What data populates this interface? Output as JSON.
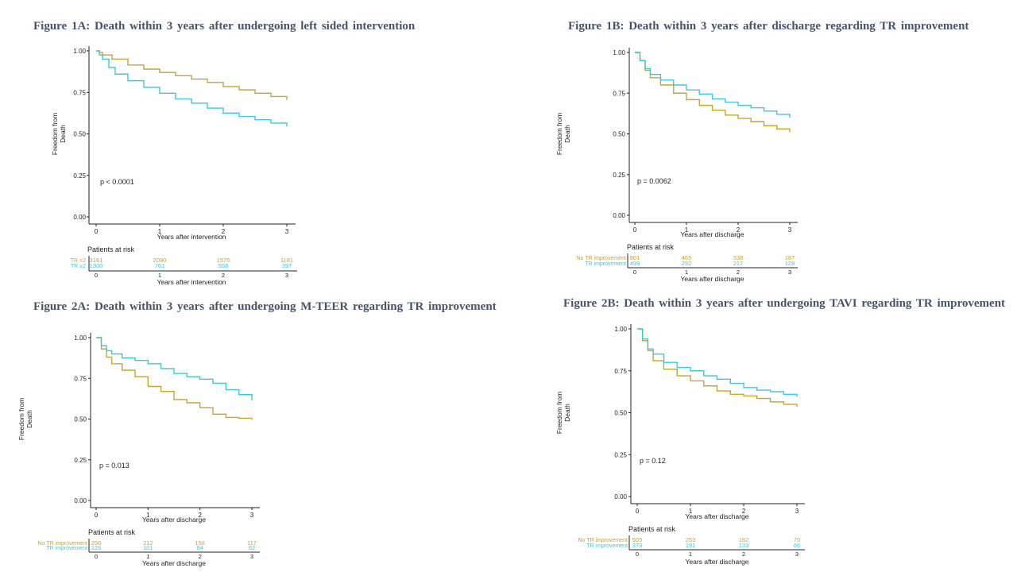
{
  "colors": {
    "gold": "#c5a42f",
    "teal": "#3cc8d6",
    "axis": "#222222",
    "title": "#44546a"
  },
  "figures": [
    {
      "title": "Figure 1A: Death within 3 years after undergoing left sided intervention",
      "pvalue": "p < 0.0001",
      "ylabel_line1": "Freedom from",
      "ylabel_line2": "Death",
      "xlabel": "Years after intervention",
      "risk_xlabel": "Years after intervention",
      "risk_title": "Patients at risk",
      "yticks": [
        "0.00",
        "0.25",
        "0.50",
        "0.75",
        "1.00"
      ],
      "xticks": [
        "0",
        "1",
        "2",
        "3"
      ],
      "risk_xticks": [
        "0",
        "1",
        "2",
        "3"
      ]
    },
    {
      "title": "Figure 1B: Death within 3 years after discharge regarding TR improvement",
      "pvalue": "p = 0.0062",
      "ylabel_line1": "Freedom from",
      "ylabel_line2": "Death",
      "xlabel": "Years after discharge",
      "risk_xlabel": "Years after discharge",
      "risk_title": "Patients at risk",
      "yticks": [
        "0.00",
        "0.25",
        "0.50",
        "0.75",
        "1.00"
      ],
      "xticks": [
        "0",
        "1",
        "2",
        "3"
      ],
      "risk_xticks": [
        "0",
        "1",
        "2",
        "3"
      ]
    },
    {
      "title": "Figure 2A: Death within 3 years after undergoing M-TEER regarding TR improvement",
      "pvalue": "p = 0.013",
      "ylabel_line1": "Freedom from",
      "ylabel_line2": "Death",
      "xlabel": "Years after discharge",
      "risk_xlabel": "Years after discharge",
      "risk_title": "Patients at risk",
      "yticks": [
        "0.00",
        "0.25",
        "0.50",
        "0.75",
        "1.00"
      ],
      "xticks": [
        "0",
        "1",
        "2",
        "3"
      ],
      "risk_xticks": [
        "0",
        "1",
        "2",
        "3"
      ]
    },
    {
      "title": "Figure 2B: Death within 3 years after undergoing TAVI regarding TR improvement",
      "pvalue": "p = 0.12",
      "ylabel_line1": "Freedom from",
      "ylabel_line2": "Death",
      "xlabel": "Years after discharge",
      "risk_xlabel": "Years after discharge",
      "risk_title": "Patients at risk",
      "yticks": [
        "0.00",
        "0.25",
        "0.50",
        "0.75",
        "1.00"
      ],
      "xticks": [
        "0",
        "1",
        "2",
        "3"
      ],
      "risk_xticks": [
        "0",
        "1",
        "2",
        "3"
      ]
    }
  ],
  "chart_data": [
    {
      "type": "line",
      "title": "Figure 1A: Death within 3 years after undergoing left sided intervention",
      "xlabel": "Years after intervention",
      "ylabel": "Freedom from Death",
      "xlim": [
        0,
        3
      ],
      "ylim": [
        0,
        1
      ],
      "annotation": "p < 0.0001",
      "series": [
        {
          "name": "TR <2",
          "color": "#c5a42f",
          "x": [
            0,
            0.05,
            0.1,
            0.25,
            0.5,
            0.75,
            1,
            1.25,
            1.5,
            1.75,
            2,
            2.25,
            2.5,
            2.75,
            3
          ],
          "y": [
            1.0,
            0.99,
            0.975,
            0.95,
            0.915,
            0.89,
            0.87,
            0.85,
            0.83,
            0.81,
            0.785,
            0.765,
            0.745,
            0.725,
            0.705
          ],
          "at_risk": [
            "3161",
            "2090",
            "1576",
            "1181"
          ]
        },
        {
          "name": "TR ≥2",
          "color": "#3cc8d6",
          "x": [
            0,
            0.05,
            0.1,
            0.2,
            0.3,
            0.5,
            0.75,
            1,
            1.25,
            1.5,
            1.75,
            2,
            2.25,
            2.5,
            2.75,
            3
          ],
          "y": [
            1.0,
            0.975,
            0.95,
            0.9,
            0.86,
            0.82,
            0.78,
            0.745,
            0.71,
            0.685,
            0.655,
            0.625,
            0.605,
            0.585,
            0.565,
            0.545
          ],
          "at_risk": [
            "1300",
            "761",
            "558",
            "397"
          ]
        }
      ]
    },
    {
      "type": "line",
      "title": "Figure 1B: Death within 3 years after discharge regarding TR improvement",
      "xlabel": "Years after discharge",
      "ylabel": "Freedom from Death",
      "xlim": [
        0,
        3
      ],
      "ylim": [
        0,
        1
      ],
      "annotation": "p = 0.0062",
      "series": [
        {
          "name": "No TR improvement",
          "color": "#c5a42f",
          "x": [
            0,
            0.1,
            0.2,
            0.3,
            0.5,
            0.75,
            1,
            1.25,
            1.5,
            1.75,
            2,
            2.25,
            2.5,
            2.75,
            3
          ],
          "y": [
            1.0,
            0.95,
            0.89,
            0.845,
            0.8,
            0.75,
            0.71,
            0.675,
            0.645,
            0.615,
            0.595,
            0.575,
            0.55,
            0.53,
            0.51
          ],
          "at_risk": [
            "801",
            "465",
            "338",
            "187"
          ]
        },
        {
          "name": "TR improvement",
          "color": "#3cc8d6",
          "x": [
            0,
            0.1,
            0.2,
            0.3,
            0.5,
            0.75,
            1,
            1.25,
            1.5,
            1.75,
            2,
            2.25,
            2.5,
            2.75,
            3
          ],
          "y": [
            1.0,
            0.95,
            0.9,
            0.865,
            0.83,
            0.8,
            0.77,
            0.745,
            0.715,
            0.695,
            0.675,
            0.66,
            0.64,
            0.62,
            0.6
          ],
          "at_risk": [
            "499",
            "292",
            "217",
            "128"
          ]
        }
      ]
    },
    {
      "type": "line",
      "title": "Figure 2A: Death within 3 years after undergoing M-TEER regarding TR improvement",
      "xlabel": "Years after discharge",
      "ylabel": "Freedom from Death",
      "xlim": [
        0,
        3
      ],
      "ylim": [
        0,
        1
      ],
      "annotation": "p = 0.013",
      "series": [
        {
          "name": "No TR improvement",
          "color": "#c5a42f",
          "x": [
            0,
            0.1,
            0.2,
            0.3,
            0.5,
            0.75,
            1,
            1.25,
            1.5,
            1.75,
            2,
            2.25,
            2.5,
            2.75,
            3
          ],
          "y": [
            1.0,
            0.93,
            0.88,
            0.84,
            0.8,
            0.76,
            0.7,
            0.67,
            0.62,
            0.6,
            0.57,
            0.53,
            0.51,
            0.505,
            0.495
          ],
          "at_risk": [
            "296",
            "212",
            "156",
            "117"
          ]
        },
        {
          "name": "TR improvement",
          "color": "#3cc8d6",
          "x": [
            0,
            0.1,
            0.2,
            0.3,
            0.5,
            0.75,
            1,
            1.25,
            1.5,
            1.75,
            2,
            2.25,
            2.5,
            2.75,
            3
          ],
          "y": [
            1.0,
            0.95,
            0.92,
            0.9,
            0.875,
            0.86,
            0.84,
            0.81,
            0.78,
            0.76,
            0.745,
            0.72,
            0.68,
            0.65,
            0.615
          ],
          "at_risk": [
            "126",
            "101",
            "84",
            "62"
          ]
        }
      ]
    },
    {
      "type": "line",
      "title": "Figure 2B: Death within 3 years after undergoing TAVI regarding TR improvement",
      "xlabel": "Years after discharge",
      "ylabel": "Freedom from Death",
      "xlim": [
        0,
        3
      ],
      "ylim": [
        0,
        1
      ],
      "annotation": "p = 0.12",
      "series": [
        {
          "name": "No TR improvement",
          "color": "#c5a42f",
          "x": [
            0,
            0.1,
            0.2,
            0.3,
            0.5,
            0.75,
            1,
            1.25,
            1.5,
            1.75,
            2,
            2.25,
            2.5,
            2.75,
            3
          ],
          "y": [
            1.0,
            0.93,
            0.87,
            0.81,
            0.76,
            0.72,
            0.69,
            0.66,
            0.63,
            0.61,
            0.6,
            0.585,
            0.565,
            0.55,
            0.535
          ],
          "at_risk": [
            "505",
            "253",
            "182",
            "70"
          ]
        },
        {
          "name": "TR improvement",
          "color": "#3cc8d6",
          "x": [
            0,
            0.1,
            0.2,
            0.3,
            0.5,
            0.75,
            1,
            1.25,
            1.5,
            1.75,
            2,
            2.25,
            2.5,
            2.75,
            3
          ],
          "y": [
            1.0,
            0.94,
            0.88,
            0.85,
            0.8,
            0.77,
            0.75,
            0.72,
            0.7,
            0.675,
            0.65,
            0.635,
            0.625,
            0.61,
            0.595
          ],
          "at_risk": [
            "373",
            "191",
            "133",
            "66"
          ]
        }
      ]
    }
  ]
}
